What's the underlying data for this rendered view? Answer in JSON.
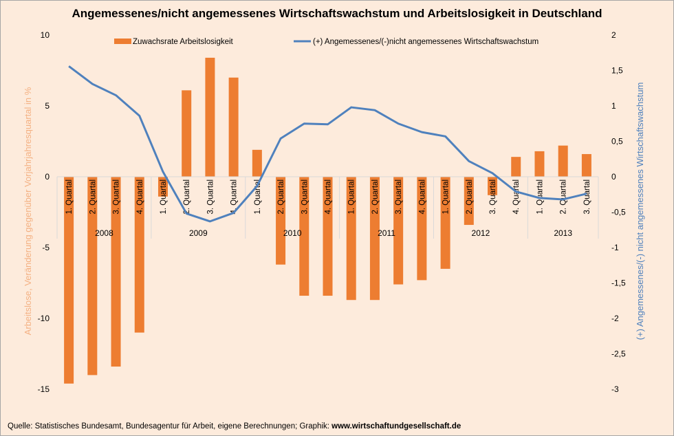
{
  "chart_data": {
    "type": "bar",
    "title": "Angemessenes/nicht angemessenes Wirtschaftswachstum und Arbeitslosigkeit in Deutschland",
    "source_prefix": "Quelle: Statistisches Bundesamt,  Bundesagentur für Arbeit, eigene Berechnungen; Graphik: ",
    "source_url": "www.wirtschaftundgesellschaft.de",
    "categories": [
      {
        "quarter": "1. Quartal",
        "year": "2008"
      },
      {
        "quarter": "2. Quartal",
        "year": "2008"
      },
      {
        "quarter": "3. Quartal",
        "year": "2008"
      },
      {
        "quarter": "4. Quartal",
        "year": "2008"
      },
      {
        "quarter": "1. Quartal",
        "year": "2009"
      },
      {
        "quarter": "2. Quartal",
        "year": "2009"
      },
      {
        "quarter": "3. Quartal",
        "year": "2009"
      },
      {
        "quarter": "4. Quartal",
        "year": "2009"
      },
      {
        "quarter": "1. Quartal",
        "year": "2010"
      },
      {
        "quarter": "2. Quartal",
        "year": "2010"
      },
      {
        "quarter": "3. Quartal",
        "year": "2010"
      },
      {
        "quarter": "4. Quartal",
        "year": "2010"
      },
      {
        "quarter": "1. Quartal",
        "year": "2011"
      },
      {
        "quarter": "2. Quartal",
        "year": "2011"
      },
      {
        "quarter": "3. Quartal",
        "year": "2011"
      },
      {
        "quarter": "4. Quartal",
        "year": "2011"
      },
      {
        "quarter": "1. Quartal",
        "year": "2012"
      },
      {
        "quarter": "2. Quartal",
        "year": "2012"
      },
      {
        "quarter": "3. Quartal",
        "year": "2012"
      },
      {
        "quarter": "4. Quartal",
        "year": "2012"
      },
      {
        "quarter": "1. Quartal",
        "year": "2013"
      },
      {
        "quarter": "2. Quartal",
        "year": "2013"
      },
      {
        "quarter": "3. Quartal",
        "year": "2013"
      }
    ],
    "years": [
      "2008",
      "2009",
      "2010",
      "2011",
      "2012",
      "2013"
    ],
    "series": [
      {
        "name": "Zuwachsrate Arbeitslosigkeit",
        "type": "bar",
        "axis": "left",
        "color": "#ed7d31",
        "values": [
          -14.6,
          -14.0,
          -13.4,
          -11.0,
          -1.4,
          6.1,
          8.4,
          7.0,
          1.9,
          -6.2,
          -8.4,
          -8.4,
          -8.7,
          -8.7,
          -7.6,
          -7.3,
          -6.5,
          -3.4,
          -1.3,
          1.4,
          1.8,
          2.2,
          1.6
        ]
      },
      {
        "name": "(+) Angemessenes/(-)nicht angemessenes Wirtschaftswachstum",
        "type": "line",
        "axis": "right",
        "color": "#4f81bd",
        "values": [
          1.56,
          1.31,
          1.15,
          0.86,
          0.07,
          -0.52,
          -0.63,
          -0.51,
          -0.13,
          0.54,
          0.75,
          0.74,
          0.98,
          0.94,
          0.75,
          0.63,
          0.57,
          0.22,
          0.05,
          -0.21,
          -0.3,
          -0.32,
          -0.24
        ]
      }
    ],
    "left_axis": {
      "label": "Arbeitslose, Veränderung gegenüber Vorjahrjahresquartal in %",
      "label_color": "#f4b183",
      "ylim": [
        -15,
        10
      ],
      "ticks": [
        10,
        5,
        0,
        -5,
        -10,
        -15
      ],
      "tick_labels": [
        "10",
        "5",
        "0",
        "-5",
        "-10",
        "-15"
      ]
    },
    "right_axis": {
      "label": "(+) Angemessenes/(-) nicht angemessenes Wirtschaftswachstum",
      "label_color": "#4f81bd",
      "ylim": [
        -3,
        2
      ],
      "ticks": [
        2,
        1.5,
        1,
        0.5,
        0,
        -0.5,
        -1,
        -1.5,
        -2,
        -2.5,
        -3
      ],
      "tick_labels": [
        "2",
        "1,5",
        "1",
        "0,5",
        "0",
        "-0,5",
        "-1",
        "-1,5",
        "-2",
        "-2,5",
        "-3"
      ]
    },
    "grid": false,
    "legend": "top"
  }
}
